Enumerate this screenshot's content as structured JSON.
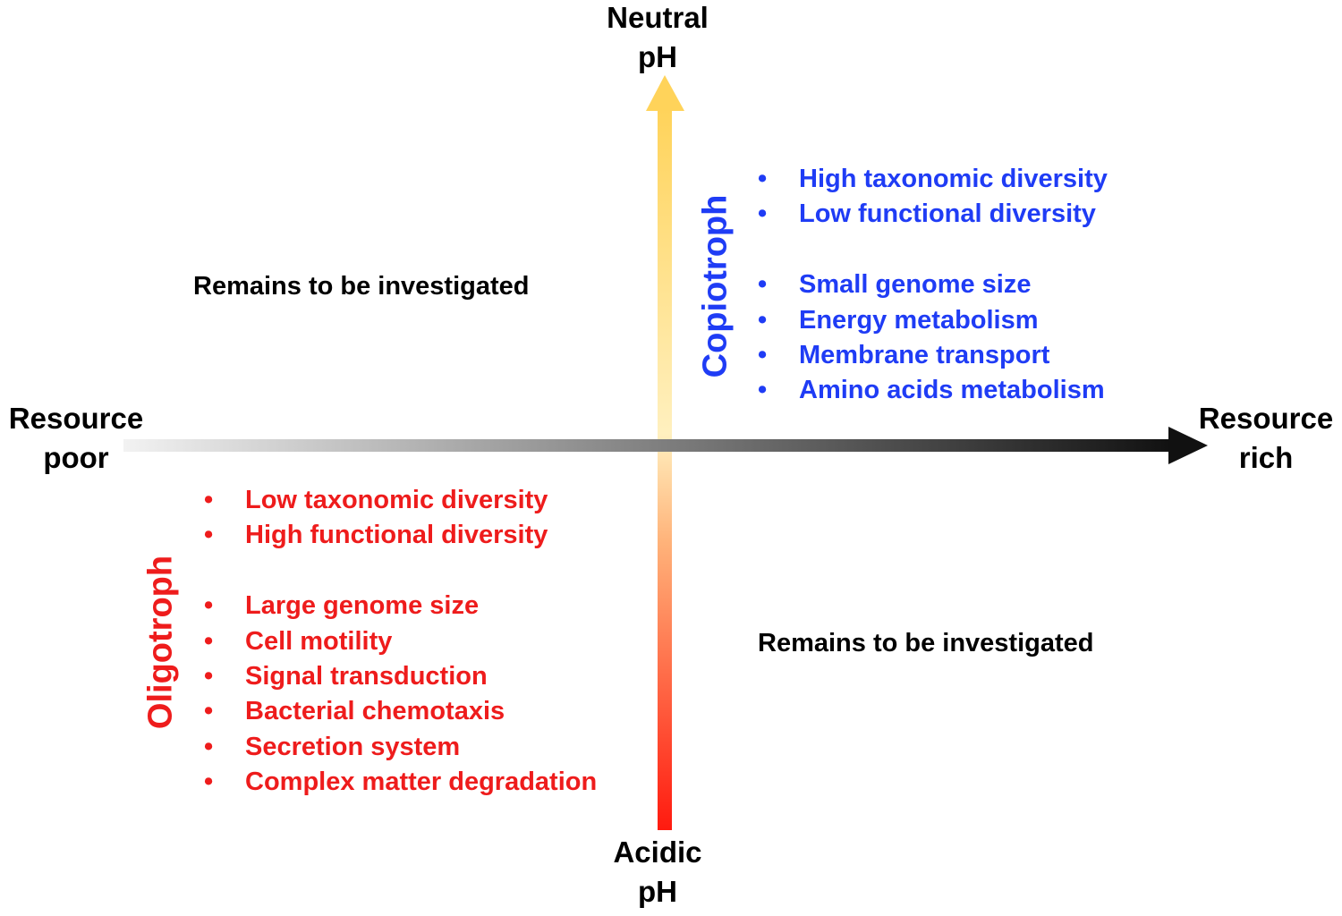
{
  "axes": {
    "y_top": [
      "Neutral",
      "pH"
    ],
    "y_bottom": [
      "Acidic",
      "pH"
    ],
    "x_left": [
      "Resource",
      "poor"
    ],
    "x_right": [
      "Resource",
      "rich"
    ]
  },
  "quadrants": {
    "top_left": "Remains to be investigated",
    "bottom_right": "Remains to be investigated"
  },
  "copiotroph": {
    "title": "Copiotroph",
    "color": "#1f3cf5",
    "group1": [
      "High taxonomic diversity",
      "Low functional diversity"
    ],
    "group2": [
      "Small genome size",
      "Energy metabolism",
      "Membrane transport",
      "Amino acids metabolism"
    ]
  },
  "oligotroph": {
    "title": "Oligotroph",
    "color": "#ee1c1c",
    "group1": [
      "Low taxonomic diversity",
      "High functional diversity"
    ],
    "group2": [
      "Large genome size",
      "Cell motility",
      "Signal transduction",
      "Bacterial chemotaxis",
      "Secretion system",
      "Complex matter degradation"
    ]
  },
  "bullet": "•"
}
